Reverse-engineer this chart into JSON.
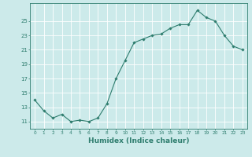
{
  "x": [
    0,
    1,
    2,
    3,
    4,
    5,
    6,
    7,
    8,
    9,
    10,
    11,
    12,
    13,
    14,
    15,
    16,
    17,
    18,
    19,
    20,
    21,
    22,
    23
  ],
  "y": [
    14,
    12.5,
    11.5,
    12,
    11,
    11.2,
    11,
    11.5,
    13.5,
    17,
    19.5,
    22,
    22.5,
    23,
    23.2,
    24,
    24.5,
    24.5,
    26.5,
    25.5,
    25,
    23,
    21.5,
    21
  ],
  "line_color": "#2e7d6e",
  "marker": "D",
  "marker_size": 1.8,
  "line_width": 0.8,
  "bg_color": "#cceaea",
  "grid_color": "#ffffff",
  "tick_color": "#2e7d6e",
  "label_color": "#2e7d6e",
  "xlabel": "Humidex (Indice chaleur)",
  "xlabel_fontsize": 6.5,
  "ylabel_ticks": [
    11,
    13,
    15,
    17,
    19,
    21,
    23,
    25
  ],
  "ylim": [
    10.0,
    27.5
  ],
  "xlim": [
    -0.5,
    23.5
  ],
  "xtick_labels": [
    "0",
    "1",
    "2",
    "3",
    "4",
    "5",
    "6",
    "7",
    "8",
    "9",
    "10",
    "11",
    "12",
    "13",
    "14",
    "15",
    "16",
    "17",
    "18",
    "19",
    "20",
    "21",
    "22",
    "23"
  ]
}
